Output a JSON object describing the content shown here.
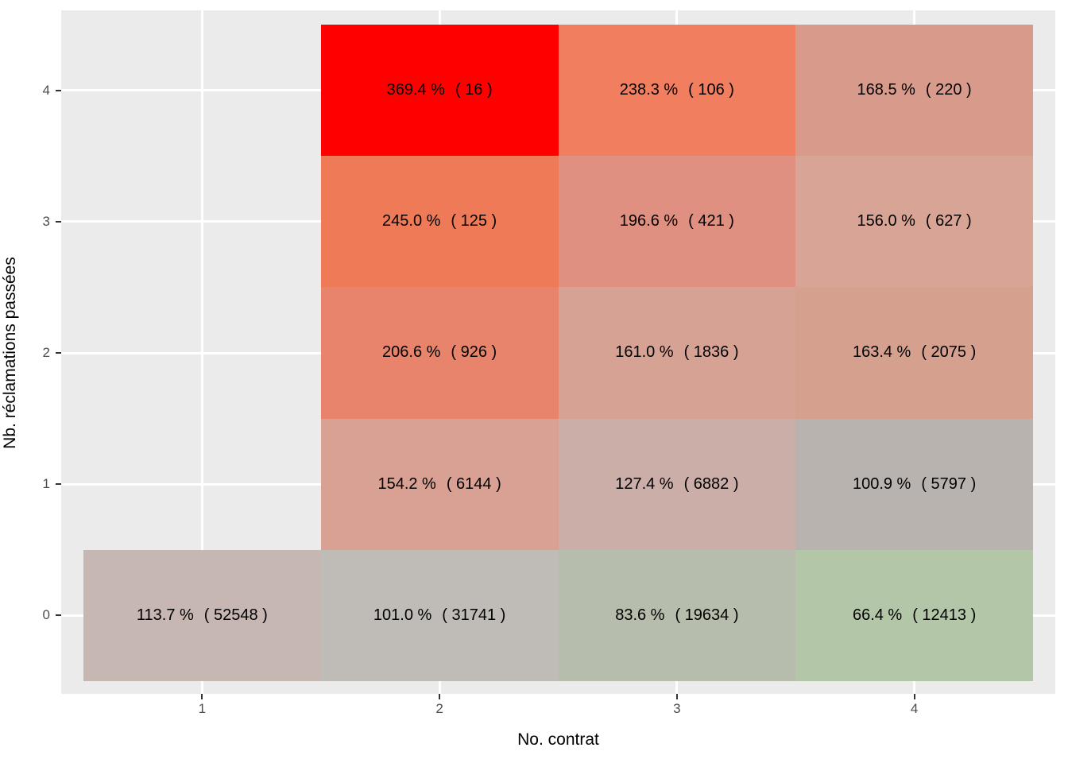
{
  "chart_data": {
    "type": "heatmap",
    "title": "",
    "xlabel": "No. contrat",
    "ylabel": "Nb. réclamations passées",
    "x_ticks": [
      "1",
      "2",
      "3",
      "4"
    ],
    "y_ticks": [
      "0",
      "1",
      "2",
      "3",
      "4"
    ],
    "x_range": [
      0.5,
      4.5
    ],
    "y_range": [
      -0.5,
      4.5
    ],
    "grid": "white major gridlines on light gray panel",
    "legend": "none",
    "value_semantics": "loss ratio percent ( policy count )",
    "colors": {
      "panel_bg": "#EBEBEB",
      "gridline": "#FFFFFF",
      "tick_label": "#4D4D4D",
      "tick_mark": "#333333",
      "axis_title": "#000000",
      "cell_text": "#000000",
      "scale_high_red": "#FF0000",
      "scale_mid_gray": "#BEBCB9",
      "scale_low_green": "#B4C6A8"
    },
    "cells": [
      {
        "x": 1,
        "y": 0,
        "percent": 113.7,
        "count": 52548,
        "pct_label": "113.7 %",
        "count_label": "( 52548 )",
        "color": "#C6B7B3"
      },
      {
        "x": 2,
        "y": 0,
        "percent": 101.0,
        "count": 31741,
        "pct_label": "101.0 %",
        "count_label": "( 31741 )",
        "color": "#BFBCB8"
      },
      {
        "x": 3,
        "y": 0,
        "percent": 83.6,
        "count": 19634,
        "pct_label": "83.6 %",
        "count_label": "( 19634 )",
        "color": "#B6BDAC"
      },
      {
        "x": 4,
        "y": 0,
        "percent": 66.4,
        "count": 12413,
        "pct_label": "66.4 %",
        "count_label": "( 12413 )",
        "color": "#B4C6A8"
      },
      {
        "x": 2,
        "y": 1,
        "percent": 154.2,
        "count": 6144,
        "pct_label": "154.2 %",
        "count_label": "( 6144 )",
        "color": "#D9A193"
      },
      {
        "x": 3,
        "y": 1,
        "percent": 127.4,
        "count": 6882,
        "pct_label": "127.4 %",
        "count_label": "( 6882 )",
        "color": "#CCAEA8"
      },
      {
        "x": 4,
        "y": 1,
        "percent": 100.9,
        "count": 5797,
        "pct_label": "100.9 %",
        "count_label": "( 5797 )",
        "color": "#B9B3B0"
      },
      {
        "x": 2,
        "y": 2,
        "percent": 206.6,
        "count": 926,
        "pct_label": "206.6 %",
        "count_label": "( 926 )",
        "color": "#E8846C"
      },
      {
        "x": 3,
        "y": 2,
        "percent": 161.0,
        "count": 1836,
        "pct_label": "161.0 %",
        "count_label": "( 1836 )",
        "color": "#D5A294"
      },
      {
        "x": 4,
        "y": 2,
        "percent": 163.4,
        "count": 2075,
        "pct_label": "163.4 %",
        "count_label": "( 2075 )",
        "color": "#D6A08F"
      },
      {
        "x": 2,
        "y": 3,
        "percent": 245.0,
        "count": 125,
        "pct_label": "245.0 %",
        "count_label": "( 125 )",
        "color": "#EF7A58"
      },
      {
        "x": 3,
        "y": 3,
        "percent": 196.6,
        "count": 421,
        "pct_label": "196.6 %",
        "count_label": "( 421 )",
        "color": "#E09080"
      },
      {
        "x": 4,
        "y": 3,
        "percent": 156.0,
        "count": 627,
        "pct_label": "156.0 %",
        "count_label": "( 627 )",
        "color": "#D8A495"
      },
      {
        "x": 2,
        "y": 4,
        "percent": 369.4,
        "count": 16,
        "pct_label": "369.4 %",
        "count_label": "( 16 )",
        "color": "#FF0000"
      },
      {
        "x": 3,
        "y": 4,
        "percent": 238.3,
        "count": 106,
        "pct_label": "238.3 %",
        "count_label": "( 106 )",
        "color": "#F07E5F"
      },
      {
        "x": 4,
        "y": 4,
        "percent": 168.5,
        "count": 220,
        "pct_label": "168.5 %",
        "count_label": "( 220 )",
        "color": "#D89B8B"
      }
    ]
  }
}
